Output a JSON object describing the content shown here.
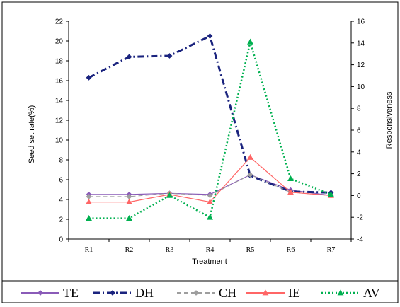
{
  "chart_data": {
    "type": "line",
    "x": [
      "R1",
      "R2",
      "R3",
      "R4",
      "R5",
      "R6",
      "R7"
    ],
    "xlabel": "Treatment",
    "ylabel": "Seed set rate(%)",
    "y2label": "Responsiveness",
    "ylim": [
      0,
      22
    ],
    "yticks": [
      0,
      2,
      4,
      6,
      8,
      10,
      12,
      14,
      16,
      18,
      20,
      22
    ],
    "y2lim": [
      -4,
      16
    ],
    "y2ticks": [
      -4,
      -2,
      0,
      2,
      4,
      6,
      8,
      10,
      12,
      14,
      16
    ],
    "grid": false,
    "legend_position": "bottom",
    "series": [
      {
        "name": "TE",
        "axis": "right",
        "color": "#8a5bb8",
        "dash": "solid",
        "marker": "diamond",
        "values": [
          0.1,
          0.1,
          0.2,
          0.1,
          1.9,
          0.5,
          0.0
        ]
      },
      {
        "name": "DH",
        "axis": "left",
        "color": "#1a237e",
        "dash": "dashdot",
        "marker": "diamond",
        "values": [
          16.3,
          18.4,
          18.5,
          20.5,
          6.4,
          4.8,
          4.7
        ]
      },
      {
        "name": "CH",
        "axis": "right",
        "color": "#9e9e9e",
        "dash": "dash",
        "marker": "diamond",
        "values": [
          -0.1,
          -0.1,
          0.2,
          0.0,
          1.9,
          0.3,
          0.0
        ]
      },
      {
        "name": "IE",
        "axis": "right",
        "color": "#ff6666",
        "dash": "solid",
        "marker": "triangle",
        "values": [
          -0.6,
          -0.6,
          0.1,
          -0.6,
          3.5,
          0.3,
          0.0
        ]
      },
      {
        "name": "AV",
        "axis": "left",
        "color": "#00b050",
        "dash": "dot",
        "marker": "triangle",
        "values": [
          2.1,
          2.1,
          4.4,
          2.2,
          19.9,
          6.1,
          4.5
        ]
      }
    ]
  }
}
